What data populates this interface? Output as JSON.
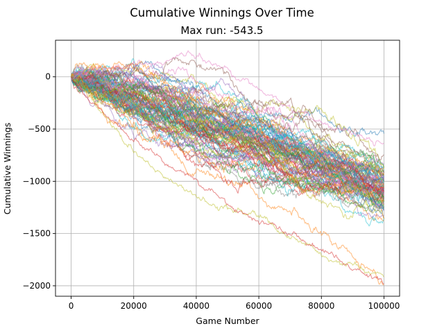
{
  "chart_data": {
    "type": "line",
    "title": "Cumulative Winnings Over Time",
    "subtitle": "Max run: -543.5",
    "xlabel": "Game Number",
    "ylabel": "Cumulative Winnings",
    "xlim": [
      -5000,
      105000
    ],
    "ylim": [
      -2100,
      350
    ],
    "x_ticks": [
      0,
      20000,
      40000,
      60000,
      80000,
      100000
    ],
    "x_tick_labels": [
      "0",
      "20000",
      "40000",
      "60000",
      "80000",
      "100000"
    ],
    "y_ticks": [
      0,
      -500,
      -1000,
      -1500,
      -2000
    ],
    "y_tick_labels": [
      "0",
      "−500",
      "−1000",
      "−1500",
      "−2000"
    ],
    "grid": true,
    "series_count": 100,
    "x_range": [
      0,
      100000
    ],
    "final_value_range": [
      -1990,
      -543.5
    ],
    "max_final_value": -543.5,
    "colors": [
      "#1f77b4",
      "#ff7f0e",
      "#2ca02c",
      "#d62728",
      "#9467bd",
      "#8c564b",
      "#e377c2",
      "#7f7f7f",
      "#bcbd22",
      "#17becf"
    ],
    "highlighted_series": [
      {
        "color": "#e377c2",
        "points": [
          [
            0,
            0
          ],
          [
            10000,
            80
          ],
          [
            20000,
            120
          ],
          [
            30000,
            150
          ],
          [
            38000,
            230
          ],
          [
            45000,
            120
          ],
          [
            55000,
            -20
          ],
          [
            65000,
            -200
          ],
          [
            80000,
            -450
          ],
          [
            100000,
            -650
          ]
        ]
      },
      {
        "color": "#bcbd22",
        "points": [
          [
            0,
            0
          ],
          [
            10000,
            -350
          ],
          [
            20000,
            -700
          ],
          [
            30000,
            -960
          ],
          [
            40000,
            -1150
          ],
          [
            50000,
            -1280
          ],
          [
            60000,
            -1320
          ],
          [
            65000,
            -1450
          ],
          [
            80000,
            -1700
          ],
          [
            100000,
            -1900
          ]
        ]
      },
      {
        "color": "#d62728",
        "points": [
          [
            0,
            0
          ],
          [
            10000,
            -350
          ],
          [
            20000,
            -600
          ],
          [
            30000,
            -820
          ],
          [
            40000,
            -1000
          ],
          [
            55000,
            -1300
          ],
          [
            70000,
            -1500
          ],
          [
            85000,
            -1750
          ],
          [
            100000,
            -1990
          ]
        ]
      }
    ]
  }
}
